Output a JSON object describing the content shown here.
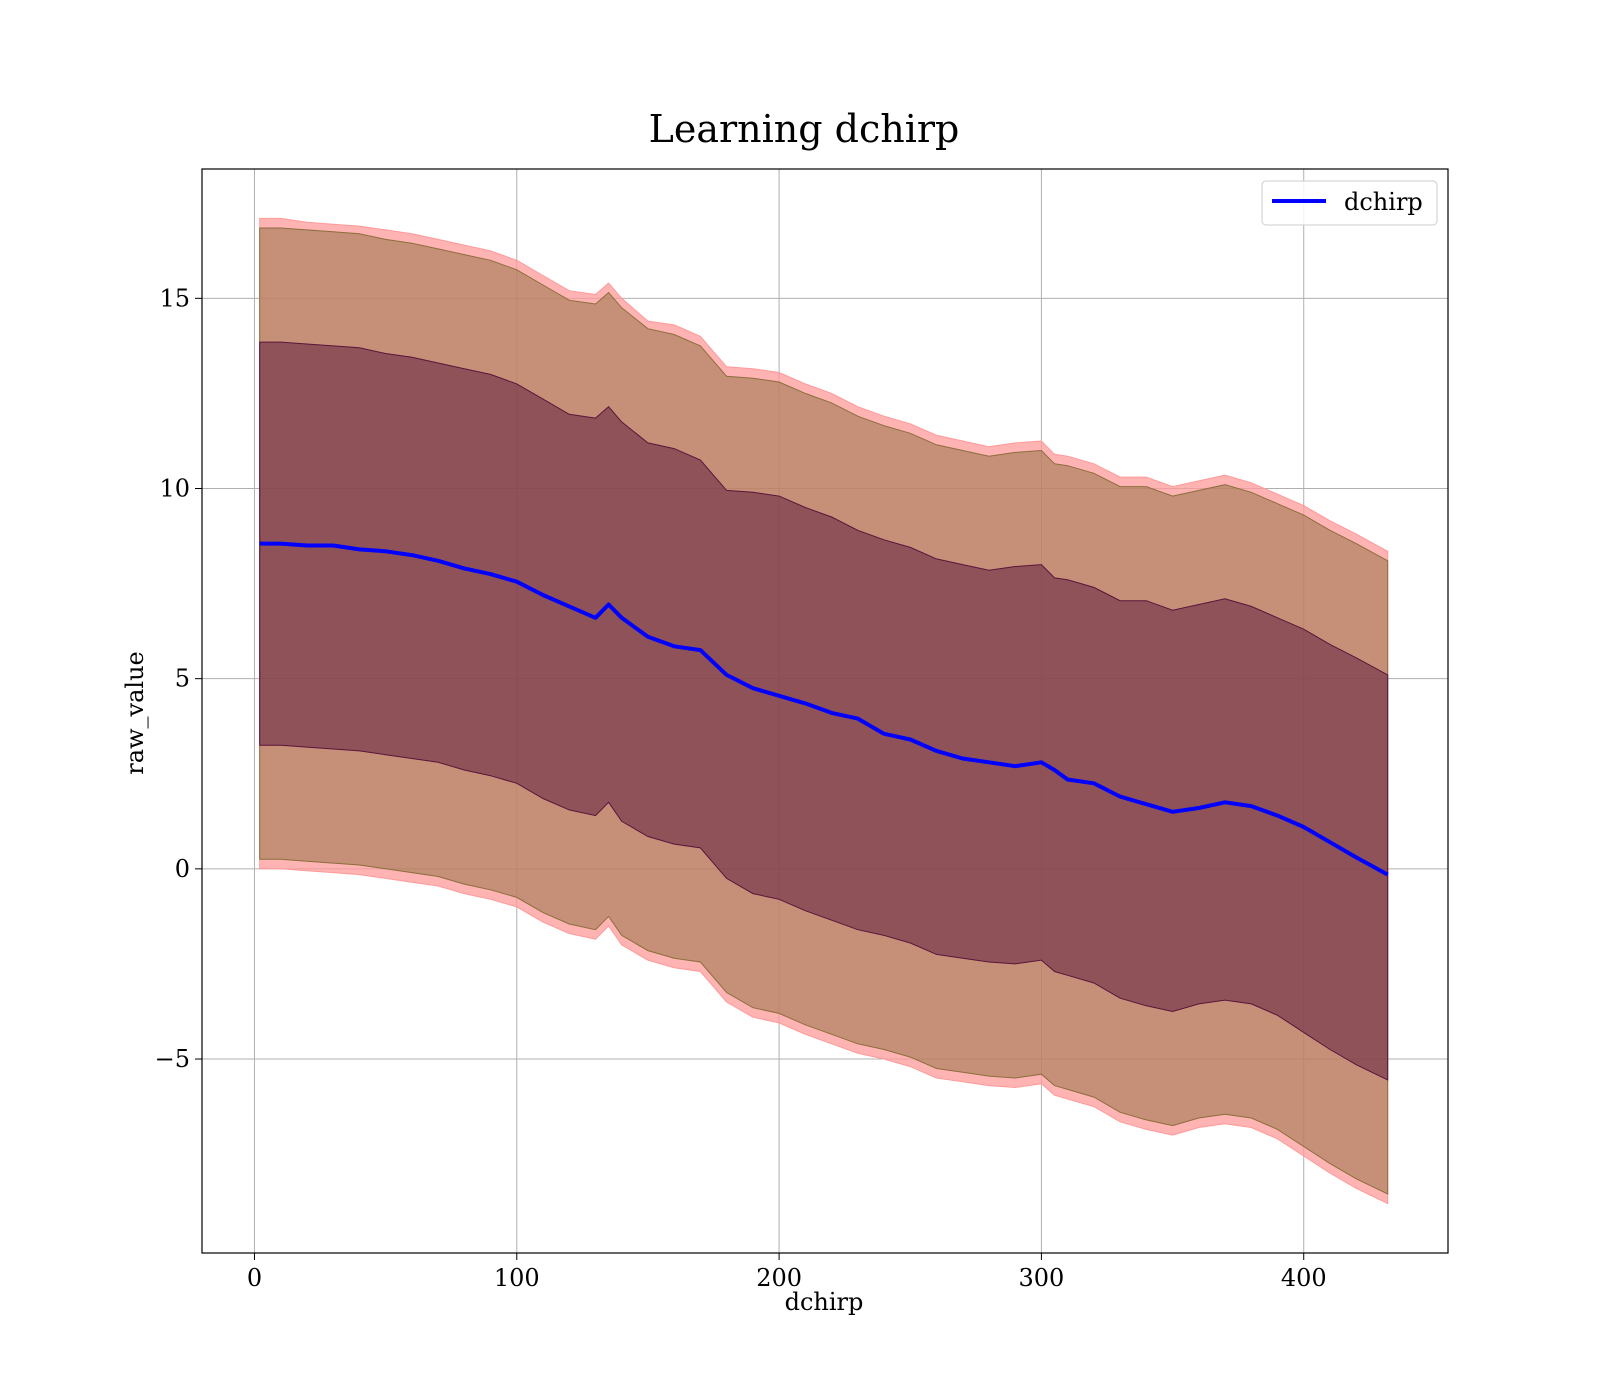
{
  "chart_data": {
    "type": "line",
    "title": "Learning dchirp",
    "xlabel": "dchirp",
    "ylabel": "raw_value",
    "xlim": [
      -20,
      455
    ],
    "ylim": [
      -10.1,
      18.4
    ],
    "xticks": [
      0,
      100,
      200,
      300,
      400
    ],
    "xtick_labels": [
      "0",
      "100",
      "200",
      "300",
      "400"
    ],
    "yticks": [
      -5,
      0,
      5,
      10,
      15
    ],
    "ytick_labels": [
      "−5",
      "0",
      "5",
      "10",
      "15"
    ],
    "grid": true,
    "legend": {
      "placement": "top-right"
    },
    "x": [
      2,
      10,
      20,
      30,
      40,
      50,
      60,
      70,
      80,
      90,
      100,
      110,
      120,
      130,
      135,
      140,
      150,
      160,
      170,
      180,
      190,
      200,
      210,
      220,
      230,
      240,
      250,
      260,
      270,
      280,
      290,
      300,
      305,
      310,
      320,
      330,
      340,
      350,
      360,
      370,
      380,
      390,
      400,
      410,
      420,
      432
    ],
    "series": [
      {
        "name": "dchirp",
        "color": "#0000ff",
        "values": [
          8.55,
          8.55,
          8.5,
          8.5,
          8.4,
          8.35,
          8.25,
          8.1,
          7.9,
          7.75,
          7.55,
          7.2,
          6.9,
          6.6,
          6.95,
          6.6,
          6.1,
          5.85,
          5.75,
          5.1,
          4.75,
          4.55,
          4.35,
          4.1,
          3.95,
          3.55,
          3.4,
          3.1,
          2.9,
          2.8,
          2.7,
          2.8,
          2.6,
          2.35,
          2.25,
          1.9,
          1.7,
          1.5,
          1.6,
          1.75,
          1.65,
          1.4,
          1.1,
          0.7,
          0.3,
          -0.15
        ]
      }
    ],
    "bands": [
      {
        "color": "#ff9999",
        "upper": [
          17.1,
          17.1,
          17.0,
          16.95,
          16.9,
          16.8,
          16.7,
          16.55,
          16.4,
          16.25,
          16.0,
          15.6,
          15.2,
          15.1,
          15.4,
          15.0,
          14.4,
          14.3,
          14.0,
          13.2,
          13.15,
          13.05,
          12.75,
          12.5,
          12.15,
          11.9,
          11.7,
          11.4,
          11.25,
          11.1,
          11.2,
          11.25,
          10.9,
          10.85,
          10.65,
          10.3,
          10.3,
          10.05,
          10.2,
          10.35,
          10.15,
          9.85,
          9.55,
          9.15,
          8.8,
          8.35
        ],
        "lower": [
          0.0,
          0.0,
          -0.05,
          -0.1,
          -0.15,
          -0.25,
          -0.35,
          -0.45,
          -0.65,
          -0.8,
          -1.0,
          -1.4,
          -1.7,
          -1.85,
          -1.5,
          -2.0,
          -2.4,
          -2.6,
          -2.7,
          -3.5,
          -3.9,
          -4.05,
          -4.35,
          -4.6,
          -4.85,
          -5.0,
          -5.2,
          -5.5,
          -5.6,
          -5.7,
          -5.75,
          -5.65,
          -5.95,
          -6.05,
          -6.25,
          -6.65,
          -6.85,
          -7.0,
          -6.8,
          -6.7,
          -6.8,
          -7.1,
          -7.55,
          -8.0,
          -8.4,
          -8.8
        ]
      },
      {
        "color": "#8c6e3c",
        "upper": [
          16.85,
          16.85,
          16.8,
          16.75,
          16.7,
          16.55,
          16.45,
          16.3,
          16.15,
          16.0,
          15.75,
          15.35,
          14.95,
          14.85,
          15.15,
          14.75,
          14.2,
          14.05,
          13.75,
          12.95,
          12.9,
          12.8,
          12.5,
          12.25,
          11.9,
          11.65,
          11.45,
          11.15,
          11.0,
          10.85,
          10.95,
          11.0,
          10.65,
          10.6,
          10.4,
          10.05,
          10.05,
          9.8,
          9.95,
          10.1,
          9.9,
          9.6,
          9.3,
          8.9,
          8.55,
          8.1
        ],
        "lower": [
          0.25,
          0.25,
          0.2,
          0.15,
          0.1,
          0.0,
          -0.1,
          -0.2,
          -0.4,
          -0.55,
          -0.75,
          -1.15,
          -1.45,
          -1.6,
          -1.25,
          -1.75,
          -2.15,
          -2.35,
          -2.45,
          -3.25,
          -3.65,
          -3.8,
          -4.1,
          -4.35,
          -4.6,
          -4.75,
          -4.95,
          -5.25,
          -5.35,
          -5.45,
          -5.5,
          -5.4,
          -5.7,
          -5.8,
          -6.0,
          -6.4,
          -6.6,
          -6.75,
          -6.55,
          -6.45,
          -6.55,
          -6.85,
          -7.3,
          -7.75,
          -8.15,
          -8.55
        ]
      },
      {
        "color": "#5a143c",
        "upper": [
          13.85,
          13.85,
          13.8,
          13.75,
          13.7,
          13.55,
          13.45,
          13.3,
          13.15,
          13.0,
          12.75,
          12.35,
          11.95,
          11.85,
          12.15,
          11.75,
          11.2,
          11.05,
          10.75,
          9.95,
          9.9,
          9.8,
          9.5,
          9.25,
          8.9,
          8.65,
          8.45,
          8.15,
          8.0,
          7.85,
          7.95,
          8.0,
          7.65,
          7.6,
          7.4,
          7.05,
          7.05,
          6.8,
          6.95,
          7.1,
          6.9,
          6.6,
          6.3,
          5.9,
          5.55,
          5.1
        ],
        "lower": [
          3.25,
          3.25,
          3.2,
          3.15,
          3.1,
          3.0,
          2.9,
          2.8,
          2.6,
          2.45,
          2.25,
          1.85,
          1.55,
          1.4,
          1.75,
          1.25,
          0.85,
          0.65,
          0.55,
          -0.25,
          -0.65,
          -0.8,
          -1.1,
          -1.35,
          -1.6,
          -1.75,
          -1.95,
          -2.25,
          -2.35,
          -2.45,
          -2.5,
          -2.4,
          -2.7,
          -2.8,
          -3.0,
          -3.4,
          -3.6,
          -3.75,
          -3.55,
          -3.45,
          -3.55,
          -3.85,
          -4.3,
          -4.75,
          -5.15,
          -5.55
        ]
      }
    ]
  }
}
